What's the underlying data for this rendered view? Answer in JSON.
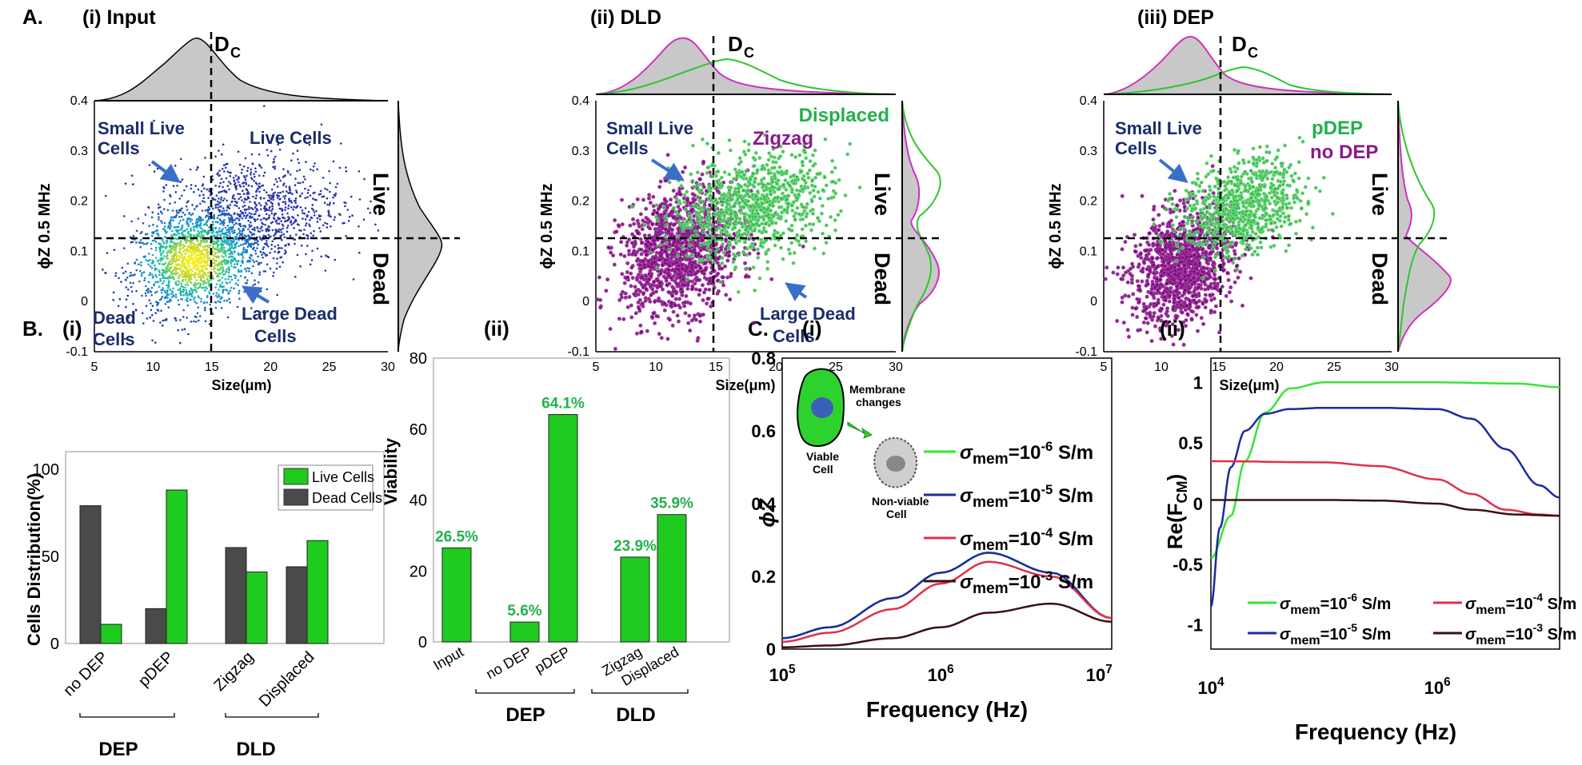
{
  "figure": {
    "section_a_label": "A.",
    "section_b_label": "B.",
    "section_c_label": "C."
  },
  "colors": {
    "live": "#1fcb1f",
    "dead": "#4a4a4a",
    "dld_displaced": "#2db84a",
    "dld_zigzag": "#8a1a8a",
    "pdep": "#2db84a",
    "nodep": "#8a1a8a",
    "label_navy": "#1a2d6b",
    "arrow_blue": "#3a6fc9",
    "pct_text": "#22b14c"
  },
  "scatter_panels": [
    {
      "title": "(i) Input",
      "dc_label": "D",
      "dc_sub": "C",
      "xlabel": "Size(μm)",
      "ylabel": "ϕZ 0.5 MHz",
      "xticks": [
        "5",
        "10",
        "15",
        "20",
        "25",
        "30"
      ],
      "yticks": [
        "0.4",
        "0.3",
        "0.2",
        "0.1",
        "0",
        "-0.1"
      ],
      "side_live": "Live",
      "side_dead": "Dead",
      "ann_small_live": [
        "Small Live",
        "Cells"
      ],
      "ann_large_dead": [
        "Large Dead",
        "Cells"
      ],
      "ann_live_cells": "Live Cells",
      "ann_dead_cells": [
        "Dead",
        "Cells"
      ]
    },
    {
      "title": "(ii)  DLD",
      "dc_label": "D",
      "dc_sub": "C",
      "xlabel": "Size(μm)",
      "ylabel": "ϕZ 0.5 MHz",
      "xticks": [
        "5",
        "10",
        "15",
        "20",
        "25",
        "30"
      ],
      "yticks": [
        "0.4",
        "0.3",
        "0.2",
        "0.1",
        "0",
        "-0.1"
      ],
      "side_live": "Live",
      "side_dead": "Dead",
      "ann_small_live": [
        "Small Live",
        "Cells"
      ],
      "ann_large_dead": [
        "Large Dead",
        "Cells"
      ],
      "legend_a": "Displaced",
      "legend_b": "Zigzag"
    },
    {
      "title": "(iii)  DEP",
      "dc_label": "D",
      "dc_sub": "C",
      "xlabel": "Size(μm)",
      "ylabel": "ϕZ 0.5 MHz",
      "xticks": [
        "5",
        "10",
        "15",
        "20",
        "25",
        "30"
      ],
      "yticks": [
        "0.4",
        "0.3",
        "0.2",
        "0.1",
        "0",
        "-0.1"
      ],
      "side_live": "Live",
      "side_dead": "Dead",
      "ann_small_live": [
        "Small Live",
        "Cells"
      ],
      "legend_a": "pDEP",
      "legend_b": "no DEP"
    }
  ],
  "chart_data": [
    {
      "id": "A_i",
      "type": "scatter",
      "title": "(i) Input",
      "xlabel": "Size(μm)",
      "ylabel": "ϕZ 0.5 MHz",
      "xlim": [
        5,
        30
      ],
      "ylim": [
        -0.1,
        0.4
      ],
      "thresholds": {
        "size_Dc": 15,
        "phase": 0.13
      },
      "clusters": [
        {
          "cx": 13.5,
          "cy": 0.08,
          "sx": 2.6,
          "sy": 0.05,
          "n": 1400
        },
        {
          "cx": 18,
          "cy": 0.17,
          "sx": 4,
          "sy": 0.06,
          "n": 1100
        }
      ],
      "density_colormap": "parula"
    },
    {
      "id": "A_ii",
      "type": "scatter",
      "title": "(ii)  DLD",
      "xlabel": "Size(μm)",
      "ylabel": "ϕZ 0.5 MHz",
      "xlim": [
        5,
        30
      ],
      "ylim": [
        -0.1,
        0.4
      ],
      "series": [
        {
          "name": "Zigzag",
          "clusters": [
            {
              "cx": 12,
              "cy": 0.1,
              "sx": 2.4,
              "sy": 0.06,
              "n": 1300
            }
          ]
        },
        {
          "name": "Displaced",
          "clusters": [
            {
              "cx": 18,
              "cy": 0.19,
              "sx": 3.3,
              "sy": 0.05,
              "n": 900
            }
          ]
        }
      ]
    },
    {
      "id": "A_iii",
      "type": "scatter",
      "title": "(iii)  DEP",
      "xlabel": "Size(μm)",
      "ylabel": "ϕZ 0.5 MHz",
      "xlim": [
        5,
        30
      ],
      "ylim": [
        -0.1,
        0.4
      ],
      "series": [
        {
          "name": "no DEP",
          "clusters": [
            {
              "cx": 11.8,
              "cy": 0.07,
              "sx": 2.2,
              "sy": 0.055,
              "n": 1200
            }
          ]
        },
        {
          "name": "pDEP",
          "clusters": [
            {
              "cx": 17,
              "cy": 0.19,
              "sx": 2.6,
              "sy": 0.045,
              "n": 800
            }
          ]
        }
      ]
    },
    {
      "id": "B_i",
      "type": "bar",
      "title": "(i)",
      "ylabel": "Cells Distribution(%)",
      "ylim": [
        0,
        110
      ],
      "yticks": [
        "100",
        "50",
        "0"
      ],
      "categories": [
        "no DEP",
        "pDEP",
        "Zigzag",
        "Displaced"
      ],
      "groups": [
        {
          "name": "DEP",
          "categories": [
            "no DEP",
            "pDEP"
          ]
        },
        {
          "name": "DLD",
          "categories": [
            "Zigzag",
            "Displaced"
          ]
        }
      ],
      "series": [
        {
          "name": "Dead Cells",
          "values": [
            79,
            20,
            55,
            44
          ]
        },
        {
          "name": "Live Cells",
          "values": [
            11,
            88,
            41,
            59
          ]
        }
      ],
      "legend": [
        "Live Cells",
        "Dead Cells"
      ]
    },
    {
      "id": "B_ii",
      "type": "bar",
      "title": "(ii)",
      "ylabel": "Viability",
      "ylim": [
        0,
        80
      ],
      "yticks": [
        "80",
        "60",
        "40",
        "20",
        "0"
      ],
      "categories": [
        "Input",
        "no DEP",
        "pDEP",
        "Zigzag",
        "Displaced"
      ],
      "values": [
        26.5,
        5.6,
        64.1,
        23.9,
        35.9
      ],
      "value_labels": [
        "26.5%",
        "5.6%",
        "64.1%",
        "23.9%",
        "35.9%"
      ],
      "groups": [
        {
          "name": "DEP",
          "categories": [
            "no DEP",
            "pDEP"
          ]
        },
        {
          "name": "DLD",
          "categories": [
            "Zigzag",
            "Displaced"
          ]
        }
      ]
    },
    {
      "id": "C_i",
      "type": "line",
      "title": "(i)",
      "xlabel": "Frequency (Hz)",
      "ylabel": "ϕZ",
      "xscale": "log",
      "xlim": [
        100000,
        12000000
      ],
      "ylim": [
        0,
        0.8
      ],
      "xticks": [
        "10^5",
        "10^6",
        "10^7"
      ],
      "yticks": [
        "0.8",
        "0.6",
        "0.4",
        "0.2",
        "0"
      ],
      "inset": {
        "viable": [
          "Viable",
          "Cell"
        ],
        "changes": [
          "Membrane",
          "changes"
        ],
        "nonviable": [
          "Non-viable",
          "Cell"
        ]
      },
      "series": [
        {
          "name": "σmem=10^-6 S/m",
          "color": "#33e633",
          "x": [
            100000,
            200000,
            500000,
            1000000,
            2000000,
            5000000,
            12000000
          ],
          "y": [
            0.03,
            0.06,
            0.14,
            0.21,
            0.265,
            0.21,
            0.085
          ]
        },
        {
          "name": "σmem=10^-5 S/m",
          "color": "#1a2aa0",
          "x": [
            100000,
            200000,
            500000,
            1000000,
            2000000,
            5000000,
            12000000
          ],
          "y": [
            0.03,
            0.06,
            0.14,
            0.21,
            0.265,
            0.21,
            0.085
          ]
        },
        {
          "name": "σmem=10^-4 S/m",
          "color": "#e0304a",
          "x": [
            100000,
            200000,
            500000,
            1000000,
            2000000,
            5000000,
            12000000
          ],
          "y": [
            0.02,
            0.045,
            0.11,
            0.18,
            0.24,
            0.2,
            0.085
          ]
        },
        {
          "name": "σmem=10^-3 S/m",
          "color": "#3a1010",
          "x": [
            100000,
            200000,
            500000,
            1000000,
            2000000,
            5000000,
            12000000
          ],
          "y": [
            0.005,
            0.01,
            0.03,
            0.06,
            0.1,
            0.125,
            0.075
          ]
        }
      ]
    },
    {
      "id": "C_ii",
      "type": "line",
      "title": "(ii)",
      "xlabel": "Frequency (Hz)",
      "ylabel": "Re(FCM)",
      "xscale": "log",
      "xlim": [
        10000,
        12000000
      ],
      "ylim": [
        -1.2,
        1.2
      ],
      "xticks": [
        "10^4",
        "10^6"
      ],
      "yticks": [
        "1",
        "0.5",
        "0",
        "-0.5",
        "-1"
      ],
      "series": [
        {
          "name": "σmem=10^-6 S/m",
          "color": "#33e633",
          "x": [
            10000,
            15000,
            20000,
            30000,
            50000,
            100000,
            300000,
            1000000,
            5000000,
            12000000
          ],
          "y": [
            -0.45,
            -0.1,
            0.35,
            0.75,
            0.95,
            1.0,
            1.0,
            1.0,
            0.99,
            0.96
          ]
        },
        {
          "name": "σmem=10^-5 S/m",
          "color": "#1a2aa0",
          "x": [
            10000,
            12000,
            15000,
            20000,
            30000,
            50000,
            100000,
            300000,
            1000000,
            2000000,
            4000000,
            8000000,
            12000000
          ],
          "y": [
            -0.85,
            -0.2,
            0.3,
            0.6,
            0.74,
            0.78,
            0.79,
            0.79,
            0.78,
            0.7,
            0.45,
            0.15,
            0.05
          ]
        },
        {
          "name": "σmem=10^-4 S/m",
          "color": "#e0304a",
          "x": [
            10000,
            100000,
            300000,
            1000000,
            2000000,
            4000000,
            8000000,
            12000000
          ],
          "y": [
            0.35,
            0.34,
            0.31,
            0.2,
            0.08,
            -0.05,
            -0.09,
            -0.1
          ]
        },
        {
          "name": "σmem=10^-3 S/m",
          "color": "#3a1010",
          "x": [
            10000,
            100000,
            300000,
            1000000,
            2000000,
            5000000,
            12000000
          ],
          "y": [
            0.03,
            0.03,
            0.025,
            0.0,
            -0.05,
            -0.09,
            -0.1
          ]
        }
      ]
    }
  ]
}
